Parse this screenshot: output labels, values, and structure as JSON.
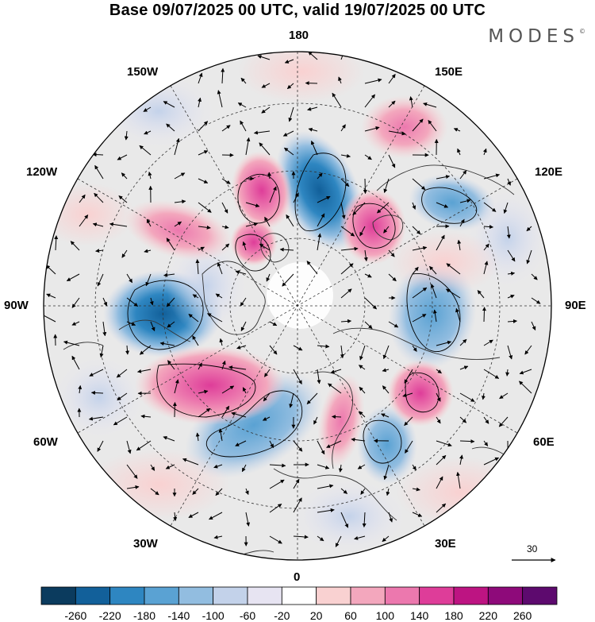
{
  "title": "Base 09/07/2025 00 UTC, valid 19/07/2025 00 UTC",
  "brand": "MODES",
  "brand_mark": "©",
  "longitude_labels": {
    "top": "180",
    "bottom": "0",
    "left": "90W",
    "right": "90E",
    "w150": "150W",
    "e150": "150E",
    "w120": "120W",
    "e120": "120E",
    "w60": "60W",
    "e60": "60E",
    "w30": "30W",
    "e30": "30E"
  },
  "reference_vector": {
    "label": "30"
  },
  "colorbar": {
    "ticks": [
      "-260",
      "-220",
      "-180",
      "-140",
      "-100",
      "-60",
      "-20",
      "20",
      "60",
      "100",
      "140",
      "180",
      "220",
      "260"
    ],
    "colors": [
      "#0b3b5e",
      "#12609a",
      "#2e86c1",
      "#5aa2d3",
      "#92bde0",
      "#c3d2ea",
      "#e7e4f2",
      "#ffffff",
      "#f9d1d1",
      "#f3a7bd",
      "#ec78ae",
      "#de3d99",
      "#bd1482",
      "#8e0a7a",
      "#5d0a6e"
    ]
  },
  "map": {
    "projection": "north-polar-stereographic",
    "field": "geopotential-height-anomaly",
    "vectors": "wind-anomaly",
    "ocean_color": "#e9e9e9",
    "continent_outline_color": "#333333"
  }
}
